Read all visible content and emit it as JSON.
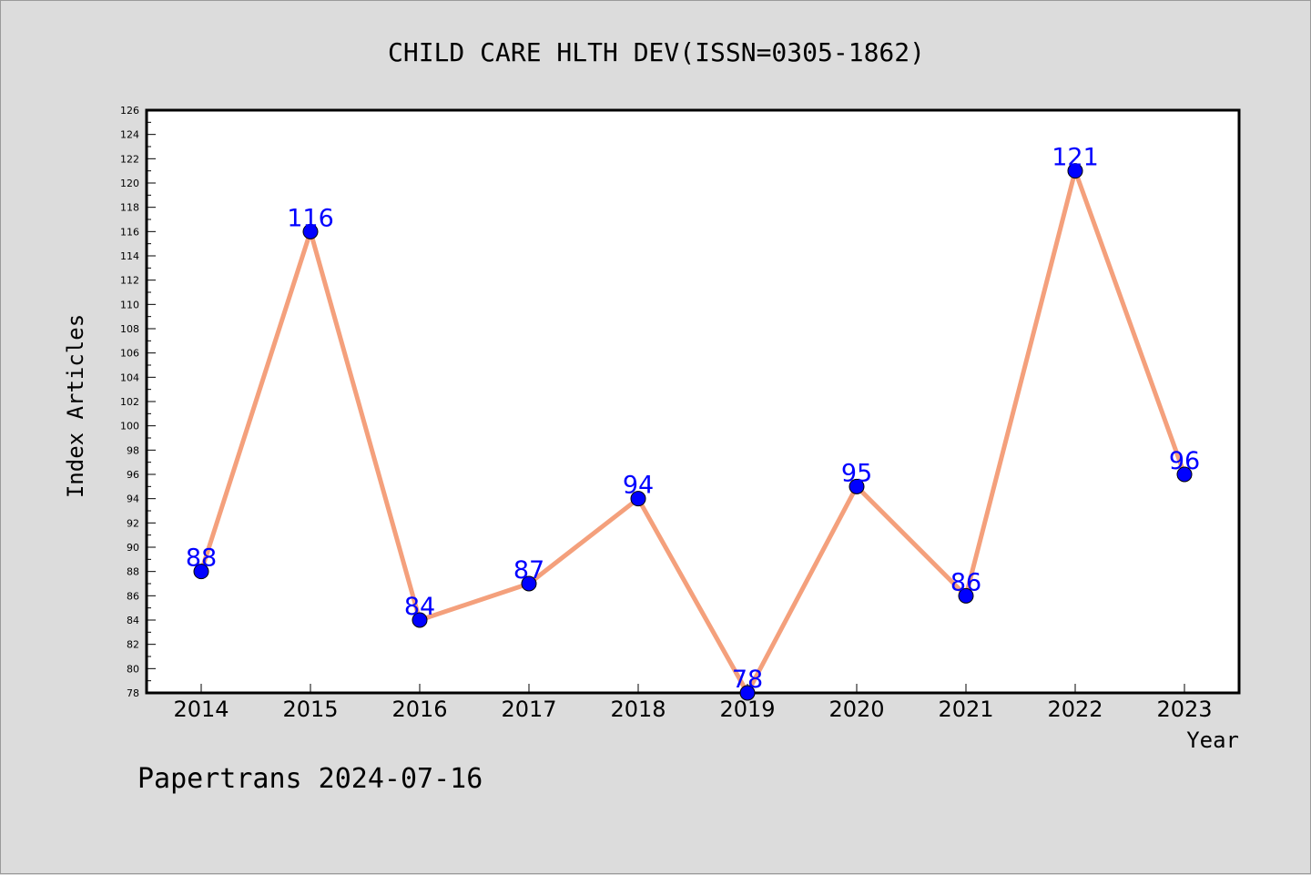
{
  "chart_data": {
    "type": "line",
    "title": "CHILD CARE HLTH DEV(ISSN=0305-1862)",
    "xlabel": "Year",
    "ylabel": "Index Articles",
    "categories": [
      "2014",
      "2015",
      "2016",
      "2017",
      "2018",
      "2019",
      "2020",
      "2021",
      "2022",
      "2023"
    ],
    "series": [
      {
        "values": [
          88,
          116,
          84,
          87,
          94,
          78,
          95,
          86,
          121,
          96
        ]
      }
    ],
    "ylim": [
      78,
      126
    ],
    "ytick_step": 2,
    "grid": false,
    "line_color": "#f4a07c",
    "marker_color": "#0000ff",
    "label_color": "#0000ff"
  },
  "footer": {
    "credit": "Papertrans 2024-07-16"
  }
}
